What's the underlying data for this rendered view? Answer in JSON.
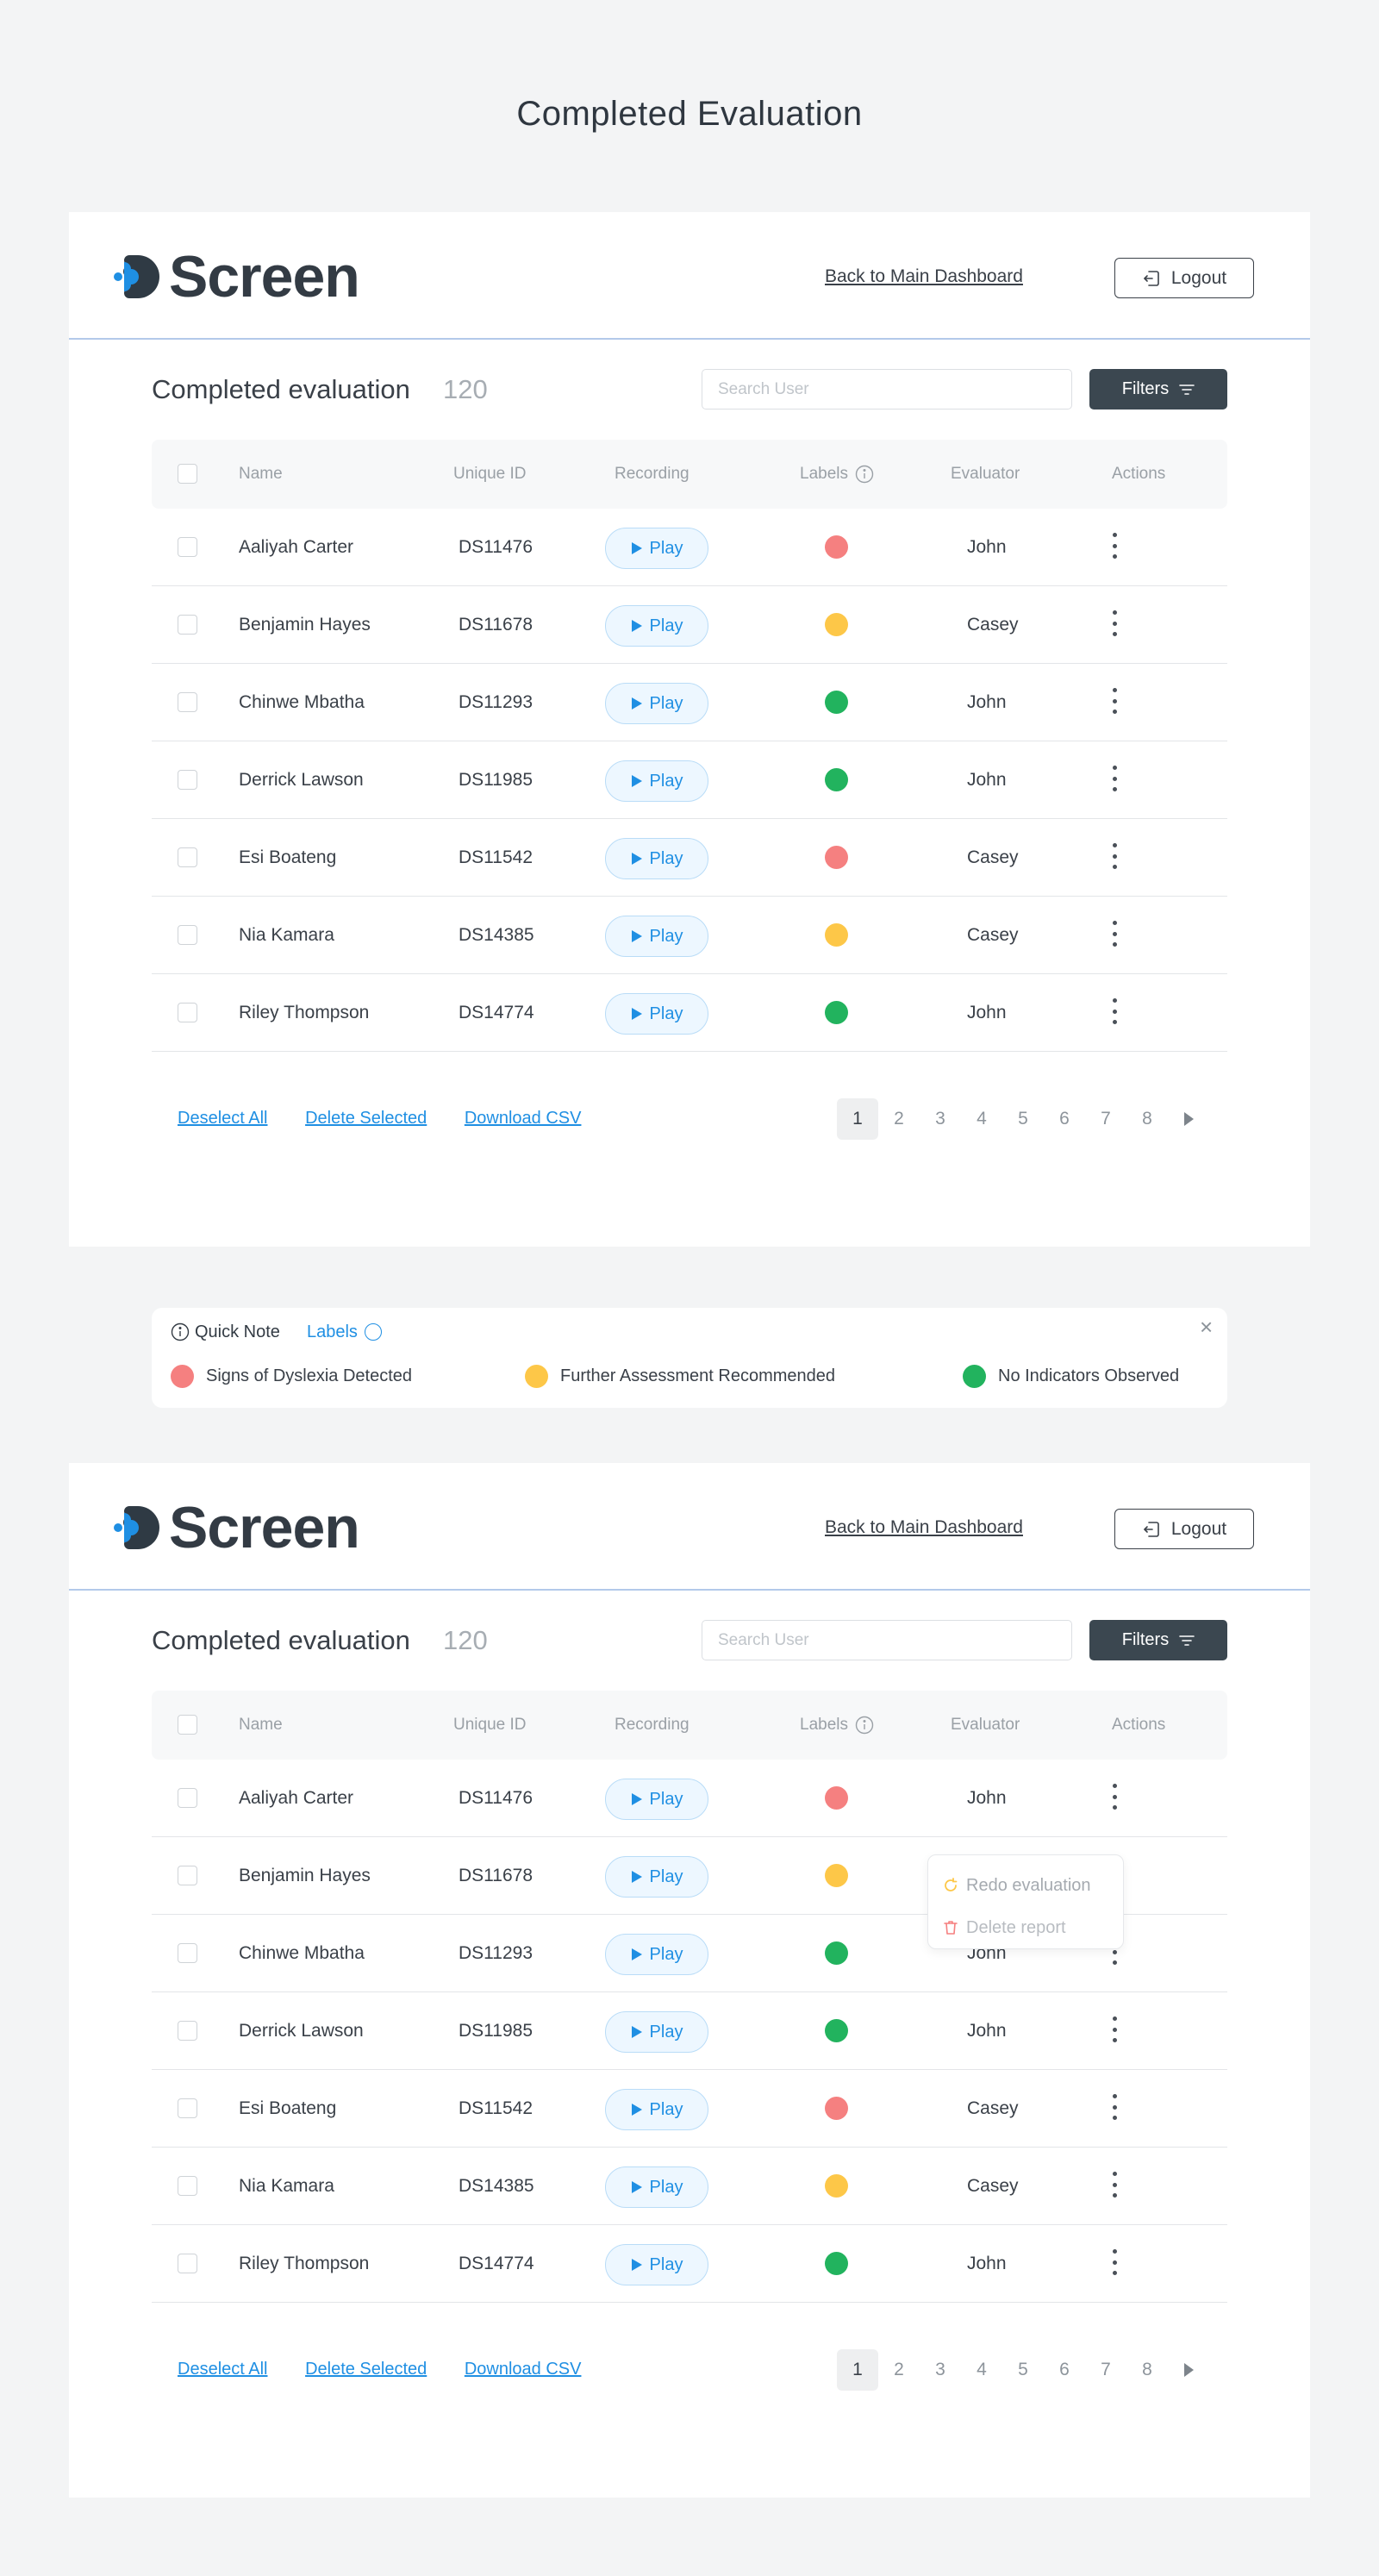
{
  "page_title": "Completed Evaluation",
  "colors": {
    "red": "#f58080",
    "yellow": "#fdc748",
    "green": "#22b35e",
    "accent_blue": "#1f8fe3",
    "dark": "#3b4750"
  },
  "header": {
    "logo_text": "Screen",
    "back_link": "Back to Main Dashboard",
    "logout": "Logout"
  },
  "section": {
    "title": "Completed evaluation",
    "count": "120",
    "search_placeholder": "Search User",
    "filters": "Filters"
  },
  "columns": {
    "name": "Name",
    "unique_id": "Unique ID",
    "recording": "Recording",
    "labels": "Labels",
    "evaluator": "Evaluator",
    "actions": "Actions"
  },
  "play_label": "Play",
  "rows": [
    {
      "name": "Aaliyah Carter",
      "id": "DS11476",
      "label": "red",
      "evaluator": "John"
    },
    {
      "name": "Benjamin Hayes",
      "id": "DS11678",
      "label": "yellow",
      "evaluator": "Casey"
    },
    {
      "name": "Chinwe Mbatha",
      "id": "DS11293",
      "label": "green",
      "evaluator": "John"
    },
    {
      "name": "Derrick Lawson",
      "id": "DS11985",
      "label": "green",
      "evaluator": "John"
    },
    {
      "name": "Esi Boateng",
      "id": "DS11542",
      "label": "red",
      "evaluator": "Casey"
    },
    {
      "name": "Nia Kamara",
      "id": "DS14385",
      "label": "yellow",
      "evaluator": "Casey"
    },
    {
      "name": "Riley Thompson",
      "id": "DS14774",
      "label": "green",
      "evaluator": "John"
    }
  ],
  "footer": {
    "deselect_all": "Deselect All",
    "delete_selected": "Delete Selected",
    "download_csv": "Download CSV"
  },
  "pagination": {
    "pages": [
      "1",
      "2",
      "3",
      "4",
      "5",
      "6",
      "7",
      "8"
    ],
    "current": "1"
  },
  "quick_note": {
    "title": "Quick Note",
    "labels_link": "Labels",
    "close": "×",
    "legend": [
      {
        "color": "red",
        "text": "Signs of Dyslexia Detected"
      },
      {
        "color": "yellow",
        "text": "Further Assessment Recommended"
      },
      {
        "color": "green",
        "text": "No Indicators Observed"
      }
    ]
  },
  "context_menu": {
    "redo": "Redo evaluation",
    "delete": "Delete report"
  }
}
